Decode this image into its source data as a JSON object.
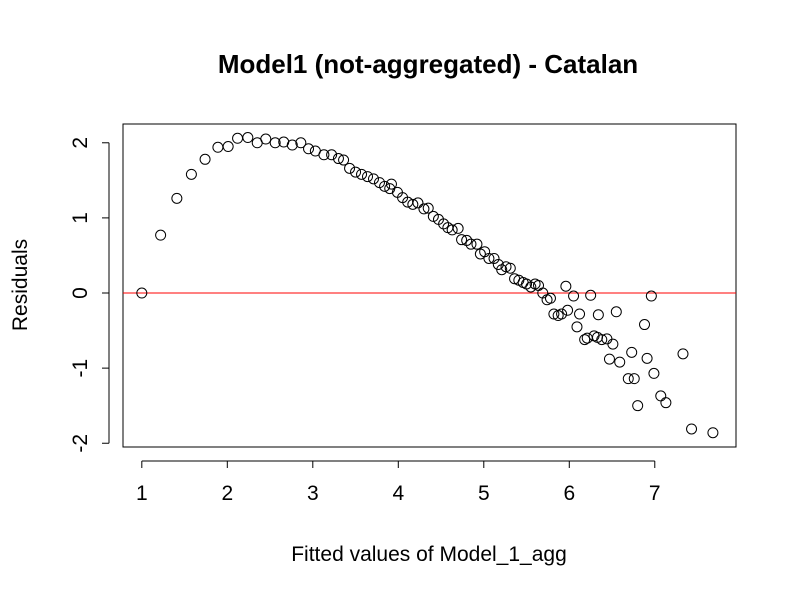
{
  "chart_data": {
    "type": "scatter",
    "title": "Model1 (not-aggregated) - Catalan",
    "xlabel": "Fitted values of Model_1_agg",
    "ylabel": "Residuals",
    "xlim": [
      0.78,
      7.95
    ],
    "ylim": [
      -2.05,
      2.25
    ],
    "xticks": [
      1,
      2,
      3,
      4,
      5,
      6,
      7
    ],
    "yticks": [
      -2,
      -1,
      0,
      1,
      2
    ],
    "xtick_labels": [
      "1",
      "2",
      "3",
      "4",
      "5",
      "6",
      "7"
    ],
    "ytick_labels": [
      "-2",
      "-1",
      "0",
      "1",
      "2"
    ],
    "grid": false,
    "reference_line": {
      "y": 0,
      "color": "#ff0000"
    },
    "point_color": "#000000",
    "points": [
      [
        1.0,
        0.0
      ],
      [
        1.22,
        0.77
      ],
      [
        1.41,
        1.26
      ],
      [
        1.58,
        1.58
      ],
      [
        1.74,
        1.78
      ],
      [
        1.89,
        1.94
      ],
      [
        2.01,
        1.95
      ],
      [
        2.12,
        2.06
      ],
      [
        2.24,
        2.07
      ],
      [
        2.35,
        2.0
      ],
      [
        2.45,
        2.05
      ],
      [
        2.56,
        2.0
      ],
      [
        2.66,
        2.01
      ],
      [
        2.76,
        1.97
      ],
      [
        2.86,
        2.0
      ],
      [
        2.95,
        1.92
      ],
      [
        3.03,
        1.89
      ],
      [
        3.13,
        1.84
      ],
      [
        3.22,
        1.84
      ],
      [
        3.3,
        1.79
      ],
      [
        3.36,
        1.77
      ],
      [
        3.43,
        1.66
      ],
      [
        3.5,
        1.61
      ],
      [
        3.57,
        1.58
      ],
      [
        3.64,
        1.55
      ],
      [
        3.71,
        1.52
      ],
      [
        3.78,
        1.47
      ],
      [
        3.84,
        1.42
      ],
      [
        3.9,
        1.39
      ],
      [
        3.92,
        1.45
      ],
      [
        3.99,
        1.34
      ],
      [
        4.05,
        1.27
      ],
      [
        4.11,
        1.21
      ],
      [
        4.17,
        1.18
      ],
      [
        4.23,
        1.2
      ],
      [
        4.3,
        1.12
      ],
      [
        4.35,
        1.13
      ],
      [
        4.41,
        1.02
      ],
      [
        4.47,
        0.98
      ],
      [
        4.53,
        0.92
      ],
      [
        4.58,
        0.87
      ],
      [
        4.63,
        0.84
      ],
      [
        4.7,
        0.86
      ],
      [
        4.74,
        0.71
      ],
      [
        4.8,
        0.7
      ],
      [
        4.85,
        0.65
      ],
      [
        4.92,
        0.65
      ],
      [
        4.96,
        0.52
      ],
      [
        5.01,
        0.55
      ],
      [
        5.06,
        0.46
      ],
      [
        5.12,
        0.46
      ],
      [
        5.17,
        0.38
      ],
      [
        5.21,
        0.31
      ],
      [
        5.26,
        0.35
      ],
      [
        5.31,
        0.33
      ],
      [
        5.36,
        0.19
      ],
      [
        5.41,
        0.17
      ],
      [
        5.46,
        0.14
      ],
      [
        5.5,
        0.12
      ],
      [
        5.55,
        0.08
      ],
      [
        5.6,
        0.12
      ],
      [
        5.64,
        0.1
      ],
      [
        5.69,
        0.0
      ],
      [
        5.74,
        -0.09
      ],
      [
        5.78,
        -0.07
      ],
      [
        5.82,
        -0.28
      ],
      [
        5.87,
        -0.3
      ],
      [
        5.91,
        -0.28
      ],
      [
        5.96,
        0.09
      ],
      [
        5.98,
        -0.23
      ],
      [
        6.05,
        -0.04
      ],
      [
        6.09,
        -0.45
      ],
      [
        6.12,
        -0.28
      ],
      [
        6.18,
        -0.62
      ],
      [
        6.21,
        -0.6
      ],
      [
        6.25,
        -0.03
      ],
      [
        6.29,
        -0.57
      ],
      [
        6.33,
        -0.59
      ],
      [
        6.34,
        -0.29
      ],
      [
        6.38,
        -0.62
      ],
      [
        6.44,
        -0.61
      ],
      [
        6.47,
        -0.88
      ],
      [
        6.51,
        -0.68
      ],
      [
        6.55,
        -0.25
      ],
      [
        6.59,
        -0.92
      ],
      [
        6.69,
        -1.14
      ],
      [
        6.73,
        -0.79
      ],
      [
        6.76,
        -1.14
      ],
      [
        6.8,
        -1.5
      ],
      [
        6.88,
        -0.42
      ],
      [
        6.91,
        -0.87
      ],
      [
        6.96,
        -0.04
      ],
      [
        6.99,
        -1.07
      ],
      [
        7.07,
        -1.37
      ],
      [
        7.13,
        -1.46
      ],
      [
        7.33,
        -0.81
      ],
      [
        7.43,
        -1.81
      ],
      [
        7.68,
        -1.86
      ]
    ]
  }
}
